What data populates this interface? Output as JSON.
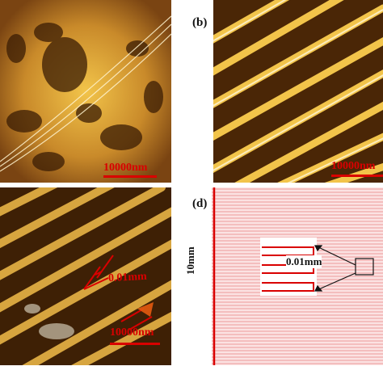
{
  "figure": {
    "panel_a": {
      "scale_label": "10000nm"
    },
    "panel_b": {
      "label": "(b)",
      "scale_label": "10000nm"
    },
    "panel_c": {
      "gap_label": "0.01mm",
      "scale_label": "10000nm"
    },
    "panel_d": {
      "label": "(d)",
      "height_label": "10mm",
      "gap_label": "0.01mm"
    }
  },
  "colors": {
    "micrograph_dark": "#4a2606",
    "micrograph_bright": "#f2c44a",
    "annotation_red": "#d90000",
    "schematic_pink": "#f6c8c8",
    "schematic_line": "#e06060"
  }
}
